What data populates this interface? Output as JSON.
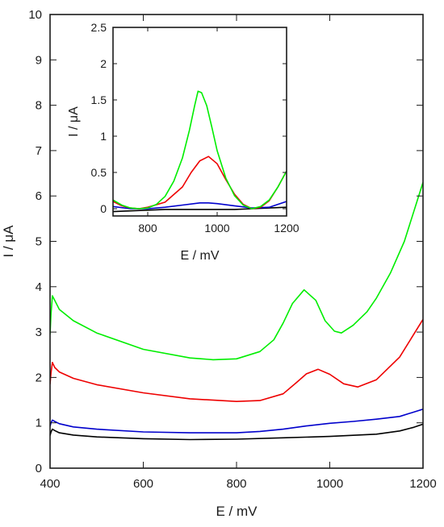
{
  "chart_data": [
    {
      "type": "line",
      "xlabel": "E / mV",
      "ylabel": "I / μA",
      "xlim": [
        400,
        1200
      ],
      "ylim": [
        0,
        10
      ],
      "x_ticks": [
        "400",
        "600",
        "800",
        "1000",
        "1200"
      ],
      "y_ticks": [
        "0",
        "1",
        "2",
        "3",
        "4",
        "5",
        "6",
        "7",
        "8",
        "9",
        "10"
      ],
      "grid": false,
      "series": [
        {
          "color": "#000000",
          "x": [
            400,
            402,
            405,
            410,
            420,
            450,
            500,
            600,
            700,
            800,
            900,
            1000,
            1100,
            1150,
            1180,
            1200
          ],
          "y": [
            0.72,
            0.8,
            0.86,
            0.83,
            0.78,
            0.73,
            0.69,
            0.65,
            0.63,
            0.64,
            0.67,
            0.7,
            0.75,
            0.82,
            0.9,
            0.97
          ]
        },
        {
          "color": "#0000cc",
          "x": [
            400,
            402,
            405,
            410,
            420,
            450,
            500,
            600,
            700,
            800,
            850,
            900,
            950,
            1000,
            1050,
            1100,
            1150,
            1200
          ],
          "y": [
            0.92,
            1.0,
            1.06,
            1.03,
            0.98,
            0.91,
            0.86,
            0.8,
            0.78,
            0.78,
            0.81,
            0.86,
            0.93,
            0.99,
            1.03,
            1.08,
            1.14,
            1.3
          ]
        },
        {
          "color": "#ee0000",
          "x": [
            400,
            402,
            405,
            410,
            420,
            450,
            500,
            600,
            700,
            800,
            850,
            900,
            930,
            950,
            975,
            1000,
            1030,
            1060,
            1100,
            1150,
            1200
          ],
          "y": [
            1.85,
            2.1,
            2.33,
            2.22,
            2.12,
            1.98,
            1.84,
            1.66,
            1.53,
            1.47,
            1.49,
            1.64,
            1.9,
            2.08,
            2.18,
            2.07,
            1.86,
            1.79,
            1.95,
            2.45,
            3.28
          ]
        },
        {
          "color": "#00ee00",
          "x": [
            400,
            402,
            405,
            410,
            420,
            450,
            500,
            600,
            700,
            750,
            800,
            850,
            880,
            900,
            920,
            945,
            970,
            990,
            1010,
            1025,
            1050,
            1080,
            1100,
            1130,
            1160,
            1200
          ],
          "y": [
            2.95,
            3.4,
            3.8,
            3.7,
            3.5,
            3.25,
            2.98,
            2.62,
            2.43,
            2.39,
            2.41,
            2.57,
            2.83,
            3.2,
            3.63,
            3.93,
            3.7,
            3.25,
            3.02,
            2.98,
            3.15,
            3.45,
            3.75,
            4.3,
            5.0,
            6.3
          ]
        }
      ]
    },
    {
      "type": "line",
      "xlabel": "E / mV",
      "ylabel": "I / μA",
      "xlim": [
        700,
        1200
      ],
      "ylim": [
        -0.1,
        2.5
      ],
      "x_ticks": [
        "800",
        "1000",
        "1200"
      ],
      "y_ticks": [
        "0",
        "0.5",
        "1",
        "1.5",
        "2",
        "2.5"
      ],
      "grid": false,
      "series": [
        {
          "color": "#000000",
          "x": [
            700,
            750,
            800,
            850,
            900,
            950,
            1000,
            1050,
            1100,
            1150,
            1200
          ],
          "y": [
            -0.04,
            -0.03,
            -0.02,
            -0.01,
            -0.01,
            -0.01,
            -0.01,
            -0.01,
            0.0,
            0.01,
            0.02
          ]
        },
        {
          "color": "#0000cc",
          "x": [
            700,
            750,
            800,
            850,
            900,
            950,
            975,
            1000,
            1050,
            1100,
            1150,
            1200
          ],
          "y": [
            0.03,
            0.0,
            0.0,
            0.02,
            0.05,
            0.08,
            0.08,
            0.07,
            0.04,
            0.01,
            0.02,
            0.1
          ]
        },
        {
          "color": "#ee0000",
          "x": [
            700,
            725,
            750,
            775,
            800,
            850,
            900,
            925,
            950,
            975,
            1000,
            1025,
            1050,
            1075,
            1100,
            1125,
            1150,
            1175,
            1200
          ],
          "y": [
            0.1,
            0.04,
            0.01,
            0.0,
            0.02,
            0.09,
            0.3,
            0.5,
            0.66,
            0.72,
            0.62,
            0.4,
            0.2,
            0.06,
            0.0,
            0.02,
            0.11,
            0.3,
            0.52
          ]
        },
        {
          "color": "#00ee00",
          "x": [
            700,
            725,
            750,
            775,
            800,
            825,
            850,
            875,
            900,
            920,
            935,
            945,
            955,
            970,
            985,
            1000,
            1025,
            1050,
            1075,
            1100,
            1125,
            1150,
            1175,
            1200
          ],
          "y": [
            0.12,
            0.05,
            0.01,
            0.0,
            0.01,
            0.06,
            0.17,
            0.38,
            0.7,
            1.08,
            1.42,
            1.62,
            1.6,
            1.42,
            1.12,
            0.8,
            0.42,
            0.18,
            0.05,
            0.0,
            0.03,
            0.12,
            0.3,
            0.52
          ]
        }
      ]
    }
  ]
}
